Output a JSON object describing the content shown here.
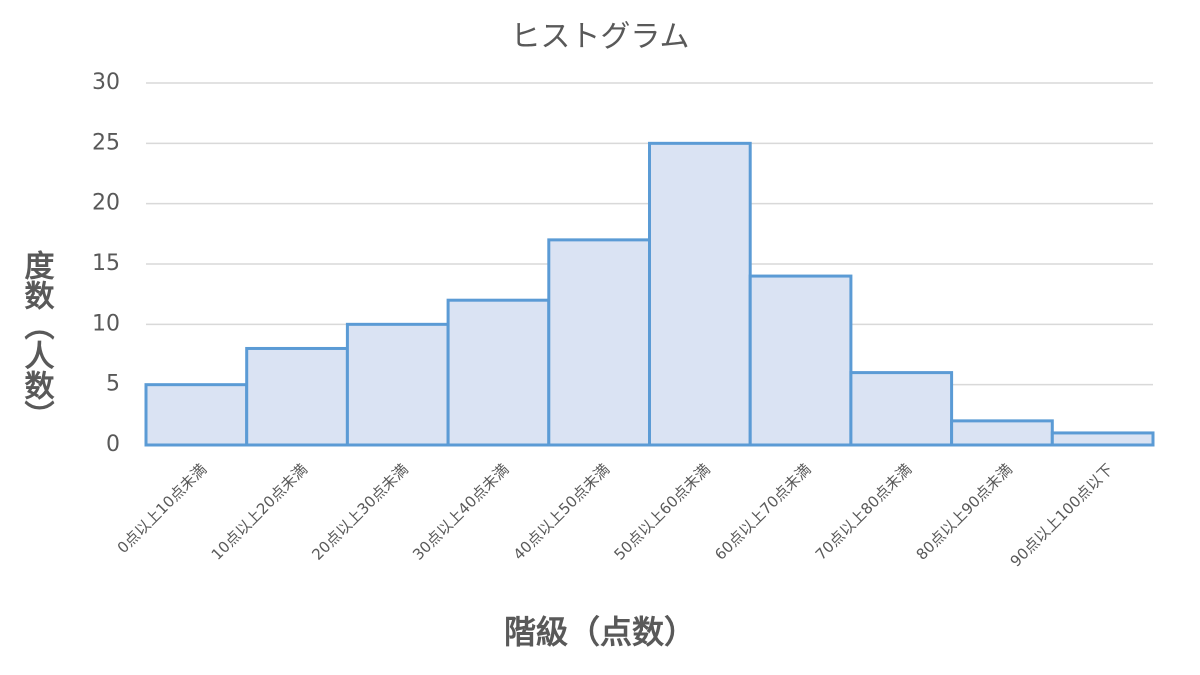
{
  "chart_data": {
    "type": "bar",
    "title": "ヒストグラム",
    "x_label": "階級（点数）",
    "y_label": "度数（人数）",
    "categories": [
      "0点以上10点未満",
      "10点以上20点未満",
      "20点以上30点未満",
      "30点以上40点未満",
      "40点以上50点未満",
      "50点以上60点未満",
      "60点以上70点未満",
      "70点以上80点未満",
      "80点以上90点未満",
      "90点以上100点以下"
    ],
    "values": [
      5,
      8,
      10,
      12,
      17,
      25,
      14,
      6,
      2,
      1
    ],
    "color": "#dae3f3",
    "edge_color": "#5b9bd5",
    "ylim": [
      0,
      30
    ],
    "yticks": [
      0,
      5,
      10,
      15,
      20,
      25,
      30
    ],
    "grid": true
  }
}
